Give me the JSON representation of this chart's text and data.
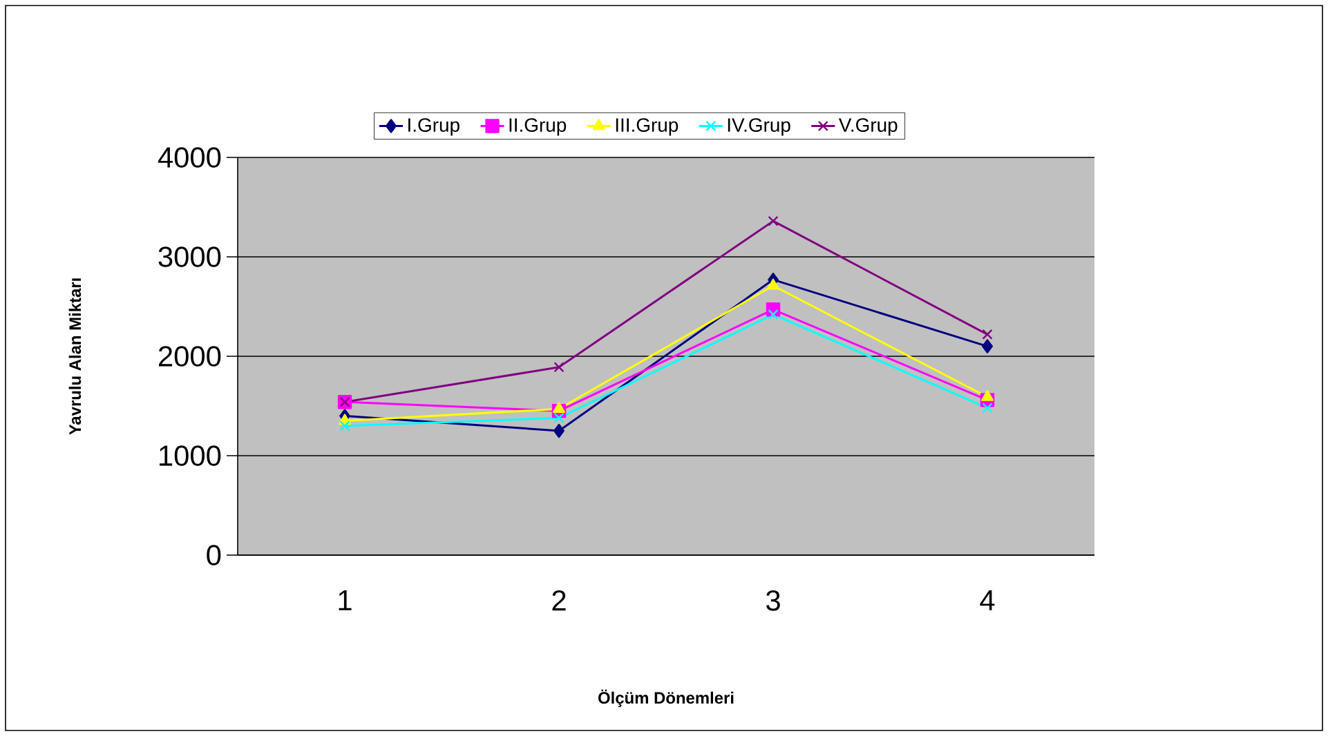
{
  "chart_data": {
    "type": "line",
    "xlabel": "Ölçüm Dönemleri",
    "ylabel": "Yavrulu Alan Miktarı",
    "categories": [
      "1",
      "2",
      "3",
      "4"
    ],
    "series": [
      {
        "name": "I.Grup",
        "color": "#000080",
        "marker": "diamond",
        "values": [
          1400,
          1250,
          2770,
          2100
        ]
      },
      {
        "name": "II.Grup",
        "color": "#ff00ff",
        "marker": "square",
        "values": [
          1540,
          1450,
          2470,
          1560
        ]
      },
      {
        "name": "III.Grup",
        "color": "#ffff00",
        "marker": "triangle",
        "values": [
          1350,
          1470,
          2710,
          1590
        ]
      },
      {
        "name": "IV.Grup",
        "color": "#00ffff",
        "marker": "cross",
        "values": [
          1300,
          1380,
          2420,
          1480
        ]
      },
      {
        "name": "V.Grup",
        "color": "#800080",
        "marker": "cross",
        "values": [
          1540,
          1890,
          3360,
          2220
        ]
      }
    ],
    "ylim": [
      0,
      4000
    ],
    "yticks": [
      0,
      1000,
      2000,
      3000,
      4000
    ],
    "grid": "y",
    "legend": "top",
    "line_style": "solid"
  }
}
